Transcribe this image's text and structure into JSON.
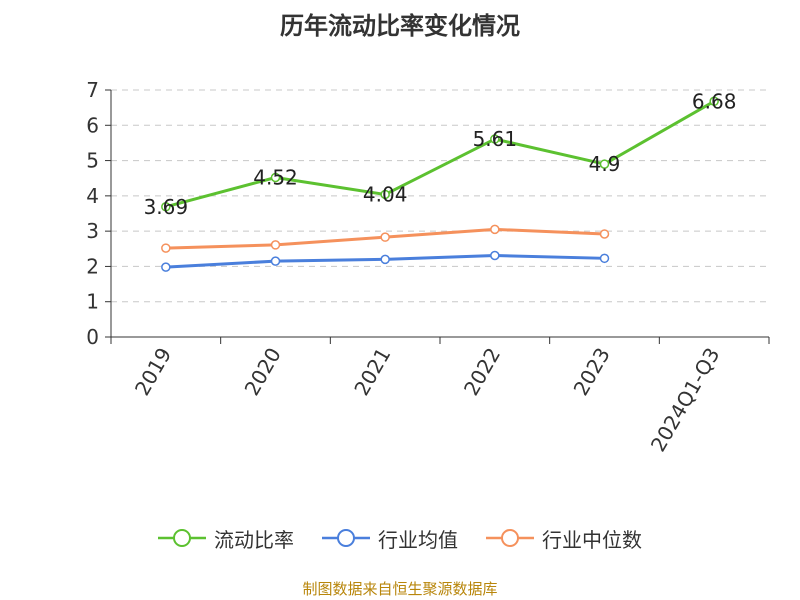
{
  "chart_data": {
    "type": "line",
    "title": "历年流动比率变化情况",
    "categories": [
      "2019",
      "2020",
      "2021",
      "2022",
      "2023",
      "2024Q1-Q3"
    ],
    "ylim": [
      0,
      7
    ],
    "yticks": [
      "0",
      "1",
      "2",
      "3",
      "4",
      "5",
      "6",
      "7"
    ],
    "grid": true,
    "legend_position": "bottom",
    "series": [
      {
        "name": "流动比率",
        "color": "#5cc130",
        "values": [
          3.69,
          4.52,
          4.04,
          5.61,
          4.9,
          6.68
        ],
        "labels": [
          "3.69",
          "4.52",
          "4.04",
          "5.61",
          "4.9",
          "6.68"
        ]
      },
      {
        "name": "行业均值",
        "color": "#4a7fdc",
        "values": [
          1.98,
          2.15,
          2.2,
          2.31,
          2.23,
          null
        ]
      },
      {
        "name": "行业中位数",
        "color": "#f5915c",
        "values": [
          2.52,
          2.61,
          2.83,
          3.05,
          2.92,
          null
        ]
      }
    ]
  },
  "source": "制图数据来自恒生聚源数据库"
}
